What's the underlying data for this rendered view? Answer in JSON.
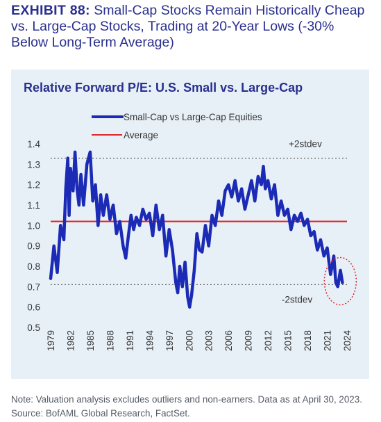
{
  "exhibit": {
    "label": "EXHIBIT 88:",
    "title": "Small-Cap Stocks Remain Historically Cheap vs. Large-Cap Stocks, Trading at 20-Year Lows (-30% Below Long-Term Average)"
  },
  "footnote": "Note: Valuation analysis excludes outliers and non-earners. Data as at April 30, 2023. Source: BofAML Global Research, FactSet.",
  "colors": {
    "series": "#1c2bb5",
    "average": "#e0262b",
    "band": "#666666",
    "highlight": "#e0262b",
    "title": "#2a2f8f"
  },
  "chart_data": {
    "type": "line",
    "title": "Relative Forward P/E: U.S. Small vs. Large-Cap",
    "xlabel": "",
    "ylabel": "",
    "xlim": [
      1979,
      2024
    ],
    "ylim": [
      0.5,
      1.4
    ],
    "x_ticks": [
      "1979",
      "1982",
      "1985",
      "1988",
      "1991",
      "1994",
      "1997",
      "2000",
      "2003",
      "2006",
      "2009",
      "2012",
      "2015",
      "2018",
      "2021",
      "2024"
    ],
    "y_ticks": [
      "0.5",
      "0.6",
      "0.7",
      "0.8",
      "0.9",
      "1.0",
      "1.1",
      "1.2",
      "1.3",
      "1.4"
    ],
    "grid": false,
    "legend": {
      "position": "top-center",
      "entries": [
        "Small-Cap vs Large-Cap Equities",
        "Average"
      ]
    },
    "series": [
      {
        "name": "Small-Cap vs Large-Cap Equities",
        "x": [
          1979,
          1979.5,
          1980,
          1980.5,
          1981,
          1981.3,
          1981.6,
          1981.8,
          1982,
          1982.4,
          1982.7,
          1983,
          1983.3,
          1983.6,
          1984,
          1984.5,
          1985,
          1985.4,
          1985.8,
          1986.2,
          1986.6,
          1987,
          1987.5,
          1988,
          1988.5,
          1989,
          1989.5,
          1990,
          1990.4,
          1990.8,
          1991.2,
          1991.6,
          1992,
          1992.5,
          1993,
          1993.5,
          1994,
          1994.5,
          1995,
          1995.5,
          1996,
          1996.5,
          1997,
          1997.5,
          1998,
          1998.3,
          1998.6,
          1999,
          1999.4,
          1999.8,
          2000.1,
          2000.4,
          2000.8,
          2001.2,
          2001.6,
          2002,
          2002.5,
          2003,
          2003.5,
          2004,
          2004.5,
          2005,
          2005.5,
          2006,
          2006.5,
          2007,
          2007.5,
          2008,
          2008.5,
          2009,
          2009.5,
          2010,
          2010.5,
          2011,
          2011.3,
          2011.6,
          2012,
          2012.5,
          2013,
          2013.5,
          2014,
          2014.5,
          2015,
          2015.5,
          2016,
          2016.5,
          2017,
          2017.5,
          2018,
          2018.5,
          2019,
          2019.5,
          2020,
          2020.5,
          2021,
          2021.5,
          2022,
          2022.3,
          2022.6,
          2023,
          2023.3
        ],
        "values": [
          0.74,
          0.9,
          0.77,
          1.0,
          0.93,
          1.18,
          1.33,
          1.05,
          1.28,
          1.17,
          1.36,
          1.18,
          1.1,
          1.25,
          1.1,
          1.3,
          1.36,
          1.12,
          1.2,
          1.0,
          1.15,
          1.05,
          1.15,
          1.03,
          1.1,
          0.96,
          1.02,
          0.9,
          0.84,
          0.95,
          1.05,
          0.98,
          1.04,
          1.0,
          1.08,
          1.03,
          1.06,
          0.95,
          1.1,
          0.98,
          1.05,
          0.85,
          0.98,
          0.88,
          0.72,
          0.67,
          0.8,
          0.7,
          0.82,
          0.65,
          0.6,
          0.66,
          0.78,
          0.96,
          0.88,
          0.87,
          1.0,
          0.9,
          1.05,
          1.0,
          1.12,
          1.05,
          1.17,
          1.2,
          1.14,
          1.22,
          1.12,
          1.18,
          1.08,
          1.15,
          1.22,
          1.12,
          1.24,
          1.2,
          1.29,
          1.18,
          1.22,
          1.13,
          1.2,
          1.05,
          1.12,
          1.05,
          1.08,
          0.98,
          1.05,
          1.02,
          1.06,
          1.0,
          1.03,
          0.95,
          0.97,
          0.88,
          0.93,
          0.85,
          0.89,
          0.76,
          0.85,
          0.72,
          0.7,
          0.78,
          0.72
        ]
      }
    ],
    "average": 1.02,
    "average_label": "Average",
    "band_upper": 1.33,
    "band_upper_label": "+2stdev",
    "band_lower": 0.71,
    "band_lower_label": "-2stdev"
  }
}
